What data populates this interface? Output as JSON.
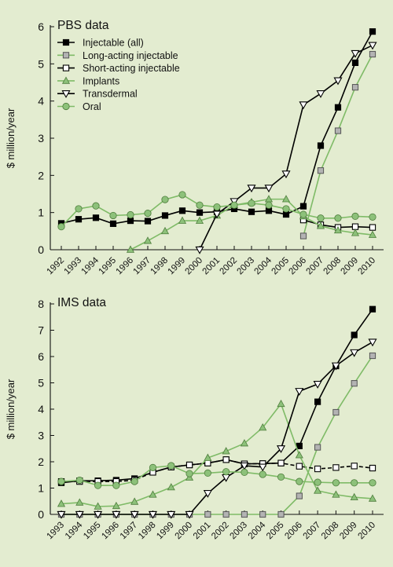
{
  "colors": {
    "background": "#e3ecd0",
    "black": "#000000",
    "green": "#7fbb67",
    "green_marker": "#8dc17a",
    "gray_marker": "#b3b3b3",
    "axis": "#111111"
  },
  "chart_data": [
    {
      "type": "line",
      "title": "PBS data",
      "ylabel": "$ million/year",
      "xlabel": "",
      "ylim": [
        0,
        6
      ],
      "yticks": [
        "0",
        "1",
        "2",
        "3",
        "4",
        "5",
        "6"
      ],
      "x": [
        "1992",
        "1993",
        "1994",
        "1995",
        "1996",
        "1997",
        "1998",
        "1999",
        "2000",
        "2001",
        "2002",
        "2003",
        "2004",
        "2005",
        "2006",
        "2007",
        "2008",
        "2009",
        "2010"
      ],
      "grid": false,
      "legend_position": "top-left",
      "series": [
        {
          "name": "Injectable (all)",
          "marker": "filled-square",
          "line": "black",
          "values": [
            0.71,
            0.82,
            0.86,
            0.7,
            0.78,
            0.77,
            0.92,
            1.05,
            1.0,
            1.02,
            1.1,
            1.02,
            1.05,
            0.95,
            1.17,
            2.8,
            3.83,
            5.03,
            5.87
          ]
        },
        {
          "name": "Long-acting injectable",
          "marker": "gray-square",
          "line": "green",
          "values": [
            null,
            null,
            null,
            null,
            null,
            null,
            null,
            null,
            null,
            null,
            null,
            null,
            null,
            null,
            0.37,
            2.13,
            3.2,
            4.37,
            5.26
          ]
        },
        {
          "name": "Short-acting injectable",
          "marker": "open-square",
          "line": "black",
          "values": [
            null,
            null,
            null,
            null,
            null,
            null,
            null,
            null,
            null,
            null,
            null,
            null,
            null,
            null,
            0.8,
            0.67,
            0.6,
            0.62,
            0.6
          ]
        },
        {
          "name": "Implants",
          "marker": "green-triangle",
          "line": "green",
          "values": [
            null,
            null,
            null,
            null,
            0.0,
            0.24,
            0.5,
            0.78,
            0.78,
            0.92,
            1.2,
            1.28,
            1.36,
            1.36,
            0.9,
            0.64,
            0.52,
            0.45,
            0.4
          ]
        },
        {
          "name": "Transdermal",
          "marker": "open-triangle-down",
          "line": "black",
          "values": [
            null,
            null,
            null,
            null,
            null,
            null,
            null,
            null,
            0.0,
            0.96,
            1.3,
            1.66,
            1.66,
            2.04,
            3.9,
            4.2,
            4.55,
            5.28,
            5.5
          ]
        },
        {
          "name": "Oral",
          "marker": "green-circle",
          "line": "green",
          "values": [
            0.62,
            1.1,
            1.18,
            0.92,
            0.94,
            0.98,
            1.35,
            1.48,
            1.2,
            1.15,
            1.2,
            1.25,
            1.2,
            1.1,
            0.95,
            0.85,
            0.85,
            0.9,
            0.88
          ]
        }
      ]
    },
    {
      "type": "line",
      "title": "IMS data",
      "ylabel": "$ million/year",
      "xlabel": "",
      "ylim": [
        0,
        8
      ],
      "yticks": [
        "0",
        "1",
        "2",
        "3",
        "4",
        "5",
        "6",
        "7",
        "8"
      ],
      "x": [
        "1993",
        "1994",
        "1995",
        "1996",
        "1997",
        "1998",
        "1999",
        "2000",
        "2001",
        "2002",
        "2003",
        "2004",
        "2005",
        "2006",
        "2007",
        "2008",
        "2009",
        "2010"
      ],
      "grid": false,
      "series": [
        {
          "name": "Injectable (all)",
          "marker": "filled-square",
          "line": "black",
          "values": [
            1.2,
            1.28,
            1.28,
            1.3,
            1.36,
            1.6,
            1.8,
            1.88,
            1.95,
            2.08,
            1.92,
            1.93,
            1.95,
            2.6,
            4.28,
            5.64,
            6.82,
            7.8
          ]
        },
        {
          "name": "Long-acting injectable",
          "marker": "gray-square",
          "line": "green",
          "values": [
            0,
            0,
            0,
            0,
            0,
            0,
            0,
            0,
            0,
            0,
            0,
            0,
            0,
            0.7,
            2.55,
            3.88,
            4.98,
            6.03
          ]
        },
        {
          "name": "Short-acting injectable",
          "marker": "open-square",
          "line": "black-dashed",
          "values": [
            1.25,
            1.25,
            1.25,
            1.25,
            1.3,
            1.6,
            1.8,
            1.88,
            1.95,
            2.08,
            1.92,
            1.93,
            1.95,
            1.83,
            1.73,
            1.78,
            1.84,
            1.76
          ]
        },
        {
          "name": "Implants",
          "marker": "green-triangle",
          "line": "green",
          "values": [
            0.4,
            0.45,
            0.3,
            0.32,
            0.48,
            0.75,
            1.03,
            1.4,
            2.15,
            2.4,
            2.7,
            3.3,
            4.2,
            2.25,
            0.9,
            0.75,
            0.65,
            0.6
          ]
        },
        {
          "name": "Transdermal",
          "marker": "open-triangle-down",
          "line": "black",
          "values": [
            0,
            0,
            0,
            0,
            0,
            0,
            0,
            0,
            0.8,
            1.4,
            1.85,
            1.8,
            2.5,
            4.68,
            4.95,
            5.65,
            6.15,
            6.55
          ]
        },
        {
          "name": "Oral",
          "marker": "green-circle",
          "line": "green",
          "values": [
            1.25,
            1.3,
            1.1,
            1.1,
            1.25,
            1.78,
            1.85,
            1.55,
            1.57,
            1.62,
            1.6,
            1.52,
            1.42,
            1.25,
            1.22,
            1.2,
            1.2,
            1.2
          ]
        }
      ]
    }
  ]
}
